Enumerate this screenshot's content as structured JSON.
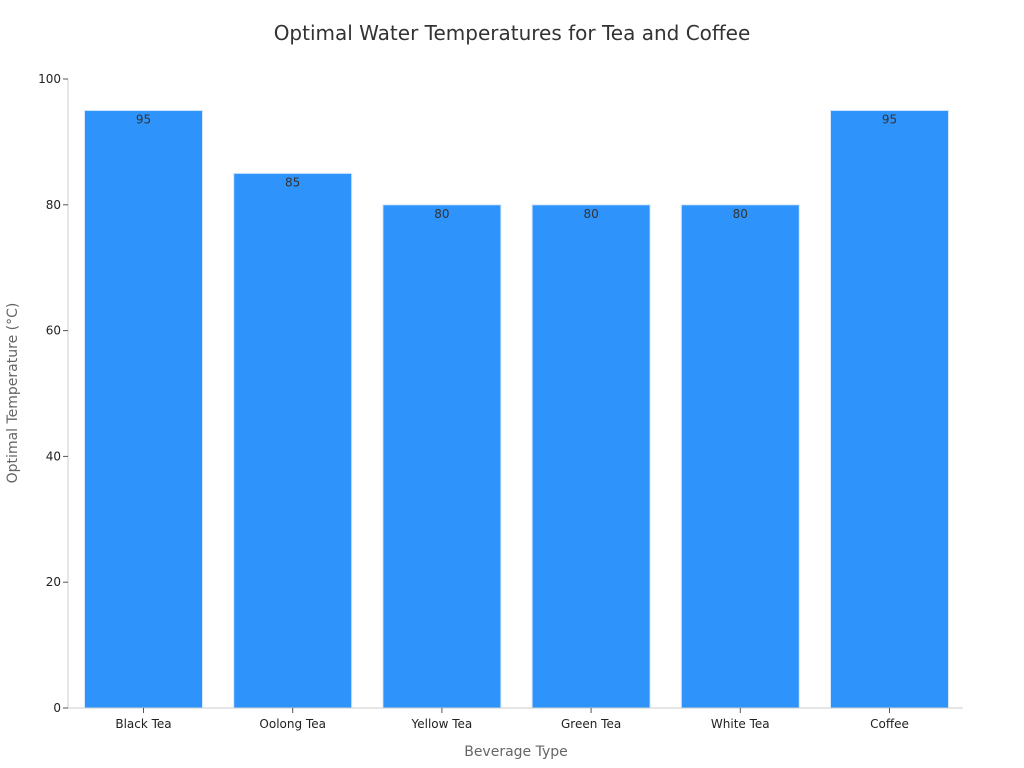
{
  "chart_data": {
    "type": "bar",
    "title": "Optimal Water Temperatures for Tea and Coffee",
    "xlabel": "Beverage Type",
    "ylabel": "Optimal Temperature (°C)",
    "categories": [
      "Black Tea",
      "Oolong Tea",
      "Yellow Tea",
      "Green Tea",
      "White Tea",
      "Coffee"
    ],
    "values": [
      95,
      85,
      80,
      80,
      80,
      95
    ],
    "data_labels": [
      "95",
      "85",
      "80",
      "80",
      "80",
      "95"
    ],
    "ylim": [
      0,
      100
    ],
    "yticks": [
      0,
      20,
      40,
      60,
      80,
      100
    ],
    "ytick_labels": [
      "0",
      "20",
      "40",
      "60",
      "80",
      "100"
    ],
    "grid": false,
    "legend": "none",
    "bar_color": "#2e93fa",
    "bar_edge_color": "#d6e8fb"
  }
}
